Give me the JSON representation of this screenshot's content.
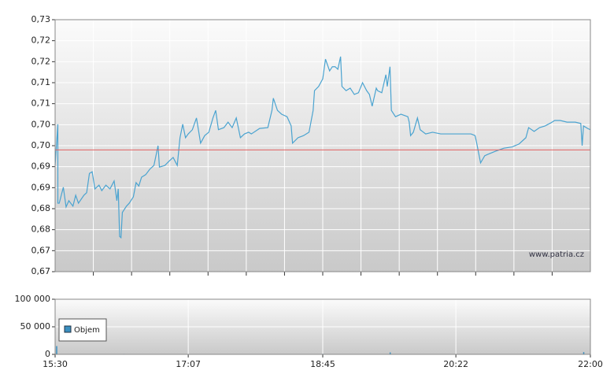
{
  "chart_data": [
    {
      "type": "line",
      "watermark": "www.patria.cz",
      "x": [
        "15:30",
        "15:32",
        "15:32",
        "15:33",
        "15:36",
        "15:38",
        "15:40",
        "15:43",
        "15:45",
        "15:47",
        "15:51",
        "15:53",
        "15:55",
        "15:57",
        "15:59",
        "16:02",
        "16:04",
        "16:07",
        "16:10",
        "16:13",
        "16:15",
        "16:16",
        "16:17",
        "16:18",
        "16:19",
        "16:22",
        "16:24",
        "16:27",
        "16:29",
        "16:31",
        "16:33",
        "16:36",
        "16:39",
        "16:42",
        "16:45",
        "16:46",
        "16:50",
        "16:53",
        "16:56",
        "16:59",
        "17:01",
        "17:03",
        "17:05",
        "17:07",
        "17:10",
        "17:13",
        "17:16",
        "17:19",
        "17:22",
        "17:25",
        "17:27",
        "17:29",
        "17:33",
        "17:36",
        "17:39",
        "17:42",
        "17:45",
        "17:48",
        "17:51",
        "17:53",
        "17:59",
        "18:05",
        "18:08",
        "18:09",
        "18:12",
        "18:15",
        "18:19",
        "18:22",
        "18:23",
        "18:27",
        "18:31",
        "18:35",
        "18:38",
        "18:39",
        "18:42",
        "18:45",
        "18:47",
        "18:50",
        "18:52",
        "18:54",
        "18:56",
        "18:58",
        "18:59",
        "19:02",
        "19:05",
        "19:08",
        "19:11",
        "19:14",
        "19:17",
        "19:19",
        "19:21",
        "19:24",
        "19:25",
        "19:28",
        "19:31",
        "19:32",
        "19:34",
        "19:35",
        "19:38",
        "19:42",
        "19:47",
        "19:48",
        "19:49",
        "19:51",
        "19:54",
        "19:56",
        "20:00",
        "20:05",
        "20:11",
        "20:17",
        "20:22",
        "20:28",
        "20:33",
        "20:36",
        "20:37",
        "20:40",
        "20:43",
        "20:45",
        "20:51",
        "20:57",
        "21:03",
        "21:08",
        "21:13",
        "21:15",
        "21:19",
        "21:23",
        "21:27",
        "21:31",
        "21:34",
        "21:38",
        "21:43",
        "21:49",
        "21:53",
        "21:54",
        "21:55",
        "21:58",
        "22:00"
      ],
      "series": [
        {
          "color": "#4aa3d0",
          "values": [
            0.6953,
            0.7051,
            0.6863,
            0.6863,
            0.6901,
            0.6854,
            0.6869,
            0.6856,
            0.6882,
            0.6863,
            0.6882,
            0.6888,
            0.6934,
            0.6938,
            0.6897,
            0.6906,
            0.6893,
            0.6906,
            0.6897,
            0.6916,
            0.6869,
            0.6897,
            0.6784,
            0.6781,
            0.6841,
            0.6856,
            0.6863,
            0.6878,
            0.6912,
            0.6904,
            0.6925,
            0.6931,
            0.6944,
            0.6953,
            0.7,
            0.6949,
            0.6953,
            0.6963,
            0.6972,
            0.6953,
            0.7019,
            0.7051,
            0.7019,
            0.7028,
            0.7038,
            0.7066,
            0.7006,
            0.7024,
            0.7032,
            0.7066,
            0.7084,
            0.7038,
            0.7043,
            0.7056,
            0.7043,
            0.7066,
            0.7019,
            0.7028,
            0.7032,
            0.7028,
            0.7041,
            0.7043,
            0.7084,
            0.7113,
            0.7084,
            0.7075,
            0.7069,
            0.7047,
            0.7006,
            0.7019,
            0.7024,
            0.7032,
            0.7084,
            0.7131,
            0.7141,
            0.7159,
            0.7206,
            0.7178,
            0.7188,
            0.7188,
            0.7182,
            0.7212,
            0.7141,
            0.7131,
            0.7137,
            0.7122,
            0.7126,
            0.715,
            0.7131,
            0.7122,
            0.7094,
            0.7137,
            0.7131,
            0.7126,
            0.7169,
            0.7141,
            0.7188,
            0.7084,
            0.7069,
            0.7075,
            0.7069,
            0.7056,
            0.7024,
            0.7032,
            0.7066,
            0.7038,
            0.7028,
            0.7032,
            0.7028,
            0.7028,
            0.7028,
            0.7028,
            0.7028,
            0.7024,
            0.7009,
            0.6959,
            0.6976,
            0.6979,
            0.6987,
            0.6994,
            0.6997,
            0.7004,
            0.7019,
            0.7043,
            0.7034,
            0.7043,
            0.7047,
            0.7054,
            0.706,
            0.706,
            0.7056,
            0.7056,
            0.7053,
            0.7,
            0.7047,
            0.7041,
            0.7038
          ]
        }
      ],
      "reference_line": 0.699,
      "reference_color": "#e06060",
      "xlim": [
        "15:30",
        "22:00"
      ],
      "ylim": [
        0.67,
        0.73
      ],
      "yticks": [
        {
          "value": 0.73,
          "label": "0,73"
        },
        {
          "value": 0.725,
          "label": "0,72"
        },
        {
          "value": 0.72,
          "label": "0,72"
        },
        {
          "value": 0.715,
          "label": "0,71"
        },
        {
          "value": 0.71,
          "label": "0,71"
        },
        {
          "value": 0.705,
          "label": "0,70"
        },
        {
          "value": 0.7,
          "label": "0,70"
        },
        {
          "value": 0.695,
          "label": "0,69"
        },
        {
          "value": 0.69,
          "label": "0,69"
        },
        {
          "value": 0.685,
          "label": "0,68"
        },
        {
          "value": 0.68,
          "label": "0,68"
        },
        {
          "value": 0.675,
          "label": "0,67"
        },
        {
          "value": 0.67,
          "label": "0,67"
        }
      ]
    },
    {
      "type": "bar",
      "x": [
        "15:31",
        "16:20",
        "17:30",
        "18:45",
        "19:34",
        "20:40",
        "21:55"
      ],
      "series": [
        {
          "name": "Objem",
          "color": "#3a8fc0",
          "values": [
            15000,
            800,
            600,
            900,
            3500,
            700,
            4000
          ]
        }
      ],
      "xlim": [
        "15:30",
        "22:00"
      ],
      "xticks": [
        "15:30",
        "17:07",
        "18:45",
        "20:22",
        "22:00"
      ],
      "ylim": [
        0,
        100000
      ],
      "yticks": [
        {
          "value": 100000,
          "label": "100 000"
        },
        {
          "value": 50000,
          "label": "50 000"
        },
        0
      ]
    }
  ]
}
